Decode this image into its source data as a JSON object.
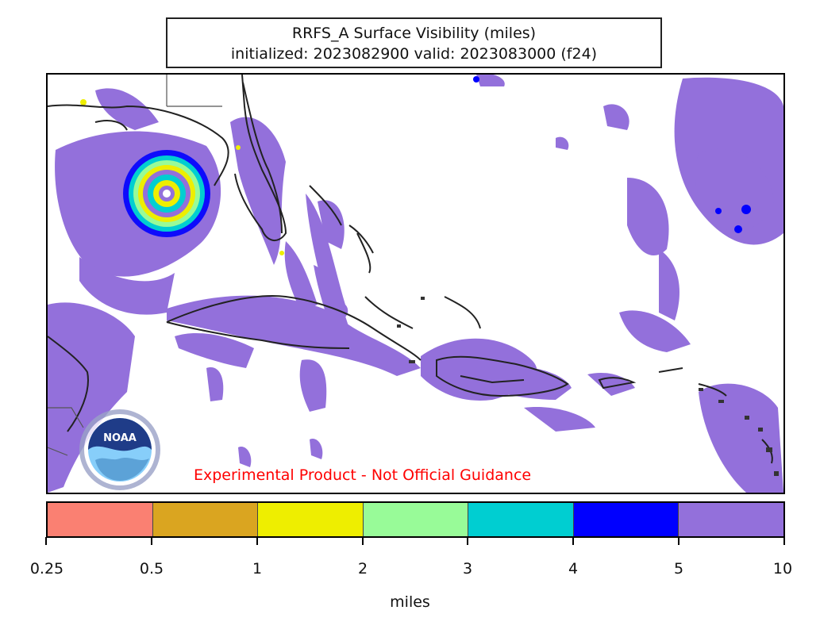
{
  "title": {
    "line1": "RRFS_A Surface Visibility (miles)",
    "line2": "initialized: 2023082900 valid: 2023083000 (f24)"
  },
  "disclaimer": "Experimental Product - Not Official Guidance",
  "logo": {
    "text": "NOAA"
  },
  "colorbar": {
    "units": "miles",
    "ticks": [
      "0.25",
      "0.5",
      "1",
      "2",
      "3",
      "4",
      "5",
      "10"
    ],
    "colors": [
      "#fa8072",
      "#daa520",
      "#eeee00",
      "#98fb98",
      "#00ced1",
      "#0000ff",
      "#9370db"
    ]
  },
  "colors": {
    "low_visibility_area": "#9370db",
    "coastline": "#222222",
    "disclaimer_text": "#ff0000"
  }
}
